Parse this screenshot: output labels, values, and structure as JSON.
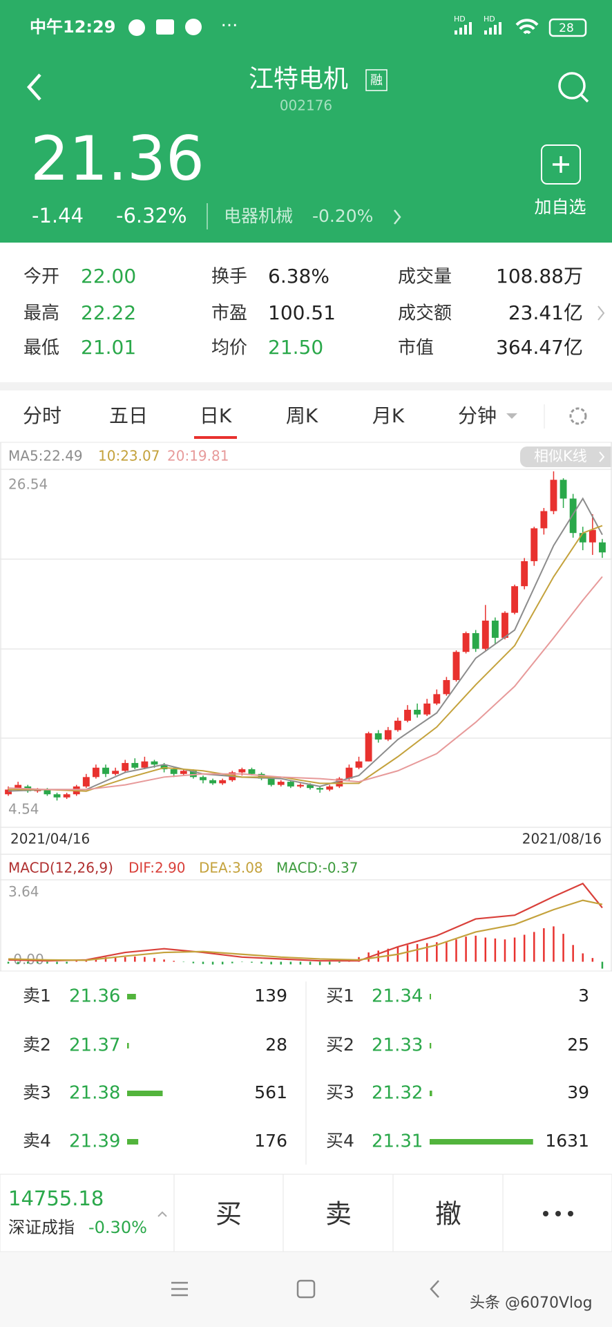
{
  "status_bar": {
    "time": "中午12:29",
    "signal_labels": [
      "HD",
      "HD"
    ],
    "battery": "28"
  },
  "header": {
    "title": "江特电机",
    "badge": "融",
    "code": "002176",
    "price": "21.36",
    "change": "-1.44",
    "change_pct": "-6.32%",
    "sector": "电器机械",
    "sector_pct": "-0.20%",
    "add_watch": "加自选"
  },
  "stats": [
    [
      {
        "label": "今开",
        "value": "22.00"
      },
      {
        "label": "换手",
        "value": "6.38%"
      },
      {
        "label": "成交量",
        "value": "108.88万"
      }
    ],
    [
      {
        "label": "最高",
        "value": "22.22"
      },
      {
        "label": "市盈",
        "value": "100.51"
      },
      {
        "label": "成交额",
        "value": "23.41亿"
      }
    ],
    [
      {
        "label": "最低",
        "value": "21.01"
      },
      {
        "label": "均价",
        "value": "21.50"
      },
      {
        "label": "市值",
        "value": "364.47亿"
      }
    ]
  ],
  "tabs": [
    "分时",
    "五日",
    "日K",
    "周K",
    "月K",
    "分钟"
  ],
  "similar_button": "相似K线",
  "chart_data": [
    {
      "type": "candlestick",
      "up_color": "#e8312e",
      "down_color": "#2aa84a",
      "ylim": [
        4.54,
        26.54
      ],
      "yticks": [
        4.54,
        26.54
      ],
      "x_labels": [
        "2021/04/16",
        "2021/08/16"
      ],
      "ohlc": [
        [
          5.9,
          6.2,
          6.4,
          5.8
        ],
        [
          6.2,
          6.5,
          6.7,
          6.1
        ],
        [
          6.4,
          6.1,
          6.5,
          6.0
        ],
        [
          6.1,
          6.2,
          6.3,
          6.0
        ],
        [
          6.2,
          5.9,
          6.3,
          5.8
        ],
        [
          5.9,
          5.7,
          6.0,
          5.5
        ],
        [
          5.7,
          5.9,
          6.0,
          5.6
        ],
        [
          5.9,
          6.4,
          6.5,
          5.8
        ],
        [
          6.4,
          7.0,
          7.2,
          6.3
        ],
        [
          7.0,
          7.6,
          7.8,
          6.9
        ],
        [
          7.6,
          7.2,
          7.8,
          7.0
        ],
        [
          7.2,
          7.4,
          7.6,
          7.1
        ],
        [
          7.4,
          7.9,
          8.1,
          7.3
        ],
        [
          7.9,
          7.6,
          8.2,
          7.5
        ],
        [
          7.6,
          8.0,
          8.3,
          7.5
        ],
        [
          8.0,
          7.8,
          8.1,
          7.6
        ],
        [
          7.8,
          7.5,
          7.9,
          7.3
        ],
        [
          7.5,
          7.2,
          7.6,
          7.0
        ],
        [
          7.2,
          7.4,
          7.5,
          7.1
        ],
        [
          7.4,
          7.0,
          7.5,
          6.9
        ],
        [
          7.0,
          6.8,
          7.1,
          6.6
        ],
        [
          6.8,
          6.6,
          6.9,
          6.5
        ],
        [
          6.6,
          6.8,
          6.9,
          6.5
        ],
        [
          6.8,
          7.3,
          7.4,
          6.7
        ],
        [
          7.3,
          7.5,
          7.6,
          7.1
        ],
        [
          7.5,
          7.2,
          7.6,
          7.1
        ],
        [
          7.2,
          6.9,
          7.3,
          6.8
        ],
        [
          6.9,
          6.5,
          7.0,
          6.4
        ],
        [
          6.5,
          6.7,
          6.8,
          6.4
        ],
        [
          6.7,
          6.4,
          6.8,
          6.3
        ],
        [
          6.4,
          6.5,
          6.6,
          6.3
        ],
        [
          6.5,
          6.3,
          6.6,
          6.2
        ],
        [
          6.3,
          6.2,
          6.4,
          6.0
        ],
        [
          6.2,
          6.4,
          6.5,
          6.1
        ],
        [
          6.4,
          6.9,
          7.0,
          6.3
        ],
        [
          6.9,
          7.6,
          7.8,
          6.8
        ],
        [
          7.6,
          8.0,
          8.3,
          7.5
        ],
        [
          8.0,
          9.8,
          9.9,
          8.0
        ],
        [
          9.8,
          9.4,
          10.0,
          9.2
        ],
        [
          9.4,
          10.0,
          10.2,
          9.3
        ],
        [
          10.0,
          10.6,
          10.8,
          9.9
        ],
        [
          10.6,
          11.3,
          11.6,
          10.5
        ],
        [
          11.3,
          11.0,
          11.7,
          10.8
        ],
        [
          11.0,
          11.7,
          12.0,
          10.9
        ],
        [
          11.7,
          12.3,
          12.6,
          11.6
        ],
        [
          12.3,
          13.2,
          13.4,
          12.2
        ],
        [
          13.2,
          15.0,
          15.1,
          13.1
        ],
        [
          15.0,
          16.2,
          16.3,
          14.9
        ],
        [
          16.2,
          15.2,
          16.4,
          15.0
        ],
        [
          15.2,
          17.0,
          18.0,
          15.1
        ],
        [
          17.0,
          15.9,
          17.2,
          15.5
        ],
        [
          15.9,
          17.5,
          17.6,
          15.8
        ],
        [
          17.5,
          19.2,
          19.3,
          17.4
        ],
        [
          19.2,
          20.8,
          21.0,
          19.0
        ],
        [
          20.8,
          22.9,
          23.0,
          20.5
        ],
        [
          22.9,
          24.0,
          24.2,
          22.5
        ],
        [
          24.0,
          26.0,
          26.54,
          23.8
        ],
        [
          26.0,
          24.8,
          26.1,
          24.2
        ],
        [
          24.8,
          22.6,
          25.1,
          22.3
        ],
        [
          22.6,
          22.0,
          23.0,
          21.5
        ],
        [
          22.0,
          22.8,
          23.8,
          21.2
        ],
        [
          22.0,
          21.36,
          22.22,
          21.01
        ]
      ],
      "ma_x": [
        0,
        4,
        8,
        12,
        16,
        20,
        24,
        28,
        32,
        36,
        40,
        44,
        48,
        52,
        56,
        59,
        61
      ],
      "series": [
        {
          "label": "MA5:22.49",
          "color": "#8c8c8c",
          "values": [
            6.1,
            6.2,
            6.2,
            7.3,
            7.8,
            7.2,
            7.0,
            6.9,
            6.4,
            7.1,
            9.4,
            11.1,
            14.6,
            16.4,
            21.8,
            24.8,
            22.49
          ]
        },
        {
          "label": "10:23.07",
          "color": "#c4a23c",
          "values": [
            6.2,
            6.2,
            6.1,
            6.9,
            7.6,
            7.4,
            7.0,
            7.0,
            6.6,
            6.6,
            8.3,
            10.2,
            12.9,
            15.4,
            19.8,
            22.6,
            23.07
          ]
        },
        {
          "label": "20:19.81",
          "color": "#e79a9a",
          "values": [
            6.3,
            6.2,
            6.2,
            6.5,
            7.0,
            7.2,
            7.2,
            7.0,
            6.9,
            6.7,
            7.4,
            8.5,
            10.5,
            12.8,
            15.9,
            18.3,
            19.81
          ]
        }
      ]
    },
    {
      "type": "macd",
      "legend": "MACD(12,26,9)",
      "macd_label": "MACD:-0.37",
      "macd_color": "#3c9a3c",
      "ylim": [
        -0.5,
        4.4
      ],
      "yticks": [
        3.64,
        {
          "value": 0,
          "label": "-0.00"
        }
      ],
      "up_color": "#e8312e",
      "down_color": "#2aa84a",
      "histogram": [
        -0.1,
        -0.12,
        -0.1,
        -0.08,
        -0.1,
        -0.12,
        -0.1,
        0.05,
        0.12,
        0.2,
        0.25,
        0.22,
        0.25,
        0.28,
        0.26,
        0.2,
        0.12,
        0.05,
        -0.02,
        -0.08,
        -0.12,
        -0.15,
        -0.14,
        -0.08,
        -0.02,
        -0.05,
        -0.1,
        -0.14,
        -0.15,
        -0.14,
        -0.15,
        -0.16,
        -0.18,
        -0.15,
        -0.05,
        0.1,
        0.25,
        0.5,
        0.6,
        0.7,
        0.8,
        0.9,
        0.95,
        1.0,
        1.05,
        1.1,
        1.2,
        1.35,
        1.4,
        1.3,
        1.25,
        1.2,
        1.3,
        1.45,
        1.6,
        1.8,
        1.9,
        1.5,
        0.9,
        0.45,
        0.2,
        -0.37
      ],
      "x": [
        0,
        4,
        8,
        12,
        16,
        20,
        24,
        28,
        32,
        36,
        40,
        44,
        48,
        52,
        56,
        59,
        61
      ],
      "series": [
        {
          "label": "DIF:2.90",
          "color": "#d9403a",
          "values": [
            0.1,
            0.05,
            0.1,
            0.5,
            0.7,
            0.5,
            0.25,
            0.15,
            0.05,
            0.05,
            0.8,
            1.4,
            2.3,
            2.5,
            3.5,
            4.2,
            2.9
          ]
        },
        {
          "label": "DEA:3.08",
          "color": "#c4a23c",
          "values": [
            0.15,
            0.1,
            0.08,
            0.3,
            0.5,
            0.55,
            0.4,
            0.25,
            0.15,
            0.1,
            0.4,
            0.9,
            1.6,
            2.0,
            2.8,
            3.3,
            3.08
          ]
        }
      ]
    }
  ],
  "order_book": {
    "bar_color": "#52b43c",
    "sell": [
      {
        "label": "卖1",
        "price": "21.36",
        "volume": 139
      },
      {
        "label": "卖2",
        "price": "21.37",
        "volume": 28
      },
      {
        "label": "卖3",
        "price": "21.38",
        "volume": 561
      },
      {
        "label": "卖4",
        "price": "21.39",
        "volume": 176
      }
    ],
    "buy": [
      {
        "label": "买1",
        "price": "21.34",
        "volume": 3
      },
      {
        "label": "买2",
        "price": "21.33",
        "volume": 25
      },
      {
        "label": "买3",
        "price": "21.32",
        "volume": 39
      },
      {
        "label": "买4",
        "price": "21.31",
        "volume": 1631
      }
    ]
  },
  "footer": {
    "index_value": "14755.18",
    "index_name": "深证成指",
    "index_pct": "-0.30%",
    "buttons": [
      "买",
      "卖",
      "撤"
    ]
  },
  "watermark": "头条 @6070Vlog"
}
